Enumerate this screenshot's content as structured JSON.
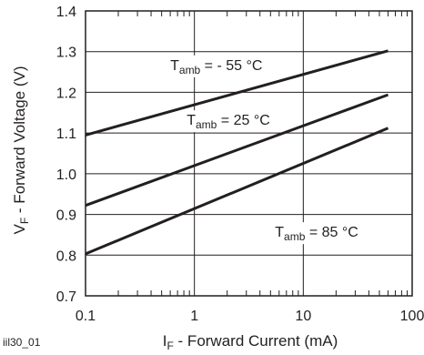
{
  "chart_data": {
    "type": "line",
    "x_scale": "log",
    "xlim": [
      0.1,
      100
    ],
    "ylim": [
      0.7,
      1.4
    ],
    "grid": true,
    "x_ticks": [
      {
        "value": 0.1,
        "label": "0.1"
      },
      {
        "value": 1,
        "label": "1"
      },
      {
        "value": 10,
        "label": "10"
      },
      {
        "value": 100,
        "label": "100"
      }
    ],
    "y_ticks": [
      {
        "value": 0.7,
        "label": "0.7"
      },
      {
        "value": 0.8,
        "label": "0.8"
      },
      {
        "value": 0.9,
        "label": "0.9"
      },
      {
        "value": 1.0,
        "label": "1.0"
      },
      {
        "value": 1.1,
        "label": "1.1"
      },
      {
        "value": 1.2,
        "label": "1.2"
      },
      {
        "value": 1.3,
        "label": "1.3"
      },
      {
        "value": 1.4,
        "label": "1.4"
      }
    ],
    "xlabel": {
      "main": "I",
      "sub": "F",
      "rest": " - Forward Current (mA)"
    },
    "ylabel": {
      "main": "V",
      "sub": "F",
      "rest": " - Forward Voltage (V)"
    },
    "series": [
      {
        "points": [
          [
            0.1,
            1.095
          ],
          [
            60,
            1.302
          ]
        ]
      },
      {
        "points": [
          [
            0.1,
            0.922
          ],
          [
            60,
            1.194
          ]
        ]
      },
      {
        "points": [
          [
            0.1,
            0.803
          ],
          [
            60,
            1.112
          ]
        ]
      }
    ],
    "annotations": [
      {
        "main": "T",
        "sub": "amb",
        "rest": " = - 55 °C",
        "x": 0.6,
        "y": 1.255
      },
      {
        "main": "T",
        "sub": "amb",
        "rest": " = 25 °C",
        "x": 0.85,
        "y": 1.12
      },
      {
        "main": "T",
        "sub": "amb",
        "rest": " = 85 °C",
        "x": 5.5,
        "y": 0.845
      }
    ]
  },
  "figure_id": "iil30_01",
  "colors": {
    "line": "#231f20",
    "grid": "#231f20"
  }
}
